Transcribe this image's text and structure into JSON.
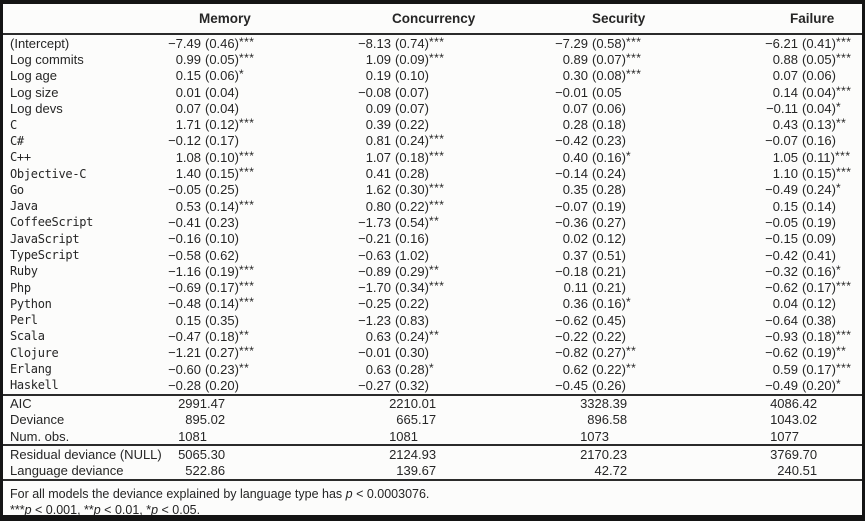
{
  "table": {
    "columns": [
      "Memory",
      "Concurrency",
      "Security",
      "Failure"
    ],
    "coef_rows": [
      {
        "label": "(Intercept)",
        "mono": false,
        "cells": [
          {
            "coef": "−7.49",
            "se": "(0.46)",
            "stars": "***"
          },
          {
            "coef": "−8.13",
            "se": "(0.74)",
            "stars": "***"
          },
          {
            "coef": "−7.29",
            "se": "(0.58)",
            "stars": "***"
          },
          {
            "coef": "−6.21",
            "se": "(0.41)",
            "stars": "***"
          }
        ]
      },
      {
        "label": "Log commits",
        "mono": false,
        "cells": [
          {
            "coef": "0.99",
            "se": "(0.05)",
            "stars": "***"
          },
          {
            "coef": "1.09",
            "se": "(0.09)",
            "stars": "***"
          },
          {
            "coef": "0.89",
            "se": "(0.07)",
            "stars": "***"
          },
          {
            "coef": "0.88",
            "se": "(0.05)",
            "stars": "***"
          }
        ]
      },
      {
        "label": "Log age",
        "mono": false,
        "cells": [
          {
            "coef": "0.15",
            "se": "(0.06)",
            "stars": "*"
          },
          {
            "coef": "0.19",
            "se": "(0.10)",
            "stars": ""
          },
          {
            "coef": "0.30",
            "se": "(0.08)",
            "stars": "***"
          },
          {
            "coef": "0.07",
            "se": "(0.06)",
            "stars": ""
          }
        ]
      },
      {
        "label": "Log size",
        "mono": false,
        "cells": [
          {
            "coef": "0.01",
            "se": "(0.04)",
            "stars": ""
          },
          {
            "coef": "−0.08",
            "se": "(0.07)",
            "stars": ""
          },
          {
            "coef": "−0.01",
            "se": "(0.05",
            "stars": ""
          },
          {
            "coef": "0.14",
            "se": "(0.04)",
            "stars": "***"
          }
        ]
      },
      {
        "label": "Log devs",
        "mono": false,
        "cells": [
          {
            "coef": "0.07",
            "se": "(0.04)",
            "stars": ""
          },
          {
            "coef": "0.09",
            "se": "(0.07)",
            "stars": ""
          },
          {
            "coef": "0.07",
            "se": "(0.06)",
            "stars": ""
          },
          {
            "coef": "−0.11",
            "se": "(0.04)",
            "stars": "*"
          }
        ]
      },
      {
        "label": "C",
        "mono": true,
        "cells": [
          {
            "coef": "1.71",
            "se": "(0.12)",
            "stars": "***"
          },
          {
            "coef": "0.39",
            "se": "(0.22)",
            "stars": ""
          },
          {
            "coef": "0.28",
            "se": "(0.18)",
            "stars": ""
          },
          {
            "coef": "0.43",
            "se": "(0.13)",
            "stars": "**"
          }
        ]
      },
      {
        "label": "C#",
        "mono": true,
        "cells": [
          {
            "coef": "−0.12",
            "se": "(0.17)",
            "stars": ""
          },
          {
            "coef": "0.81",
            "se": "(0.24)",
            "stars": "***"
          },
          {
            "coef": "−0.42",
            "se": "(0.23)",
            "stars": ""
          },
          {
            "coef": "−0.07",
            "se": "(0.16)",
            "stars": ""
          }
        ]
      },
      {
        "label": "C++",
        "mono": true,
        "cells": [
          {
            "coef": "1.08",
            "se": "(0.10)",
            "stars": "***"
          },
          {
            "coef": "1.07",
            "se": "(0.18)",
            "stars": "***"
          },
          {
            "coef": "0.40",
            "se": "(0.16)",
            "stars": "*"
          },
          {
            "coef": "1.05",
            "se": "(0.11)",
            "stars": "***"
          }
        ]
      },
      {
        "label": "Objective-C",
        "mono": true,
        "cells": [
          {
            "coef": "1.40",
            "se": "(0.15)",
            "stars": "***"
          },
          {
            "coef": "0.41",
            "se": "(0.28)",
            "stars": ""
          },
          {
            "coef": "−0.14",
            "se": "(0.24)",
            "stars": ""
          },
          {
            "coef": "1.10",
            "se": "(0.15)",
            "stars": "***"
          }
        ]
      },
      {
        "label": "Go",
        "mono": true,
        "cells": [
          {
            "coef": "−0.05",
            "se": "(0.25)",
            "stars": ""
          },
          {
            "coef": "1.62",
            "se": "(0.30)",
            "stars": "***"
          },
          {
            "coef": "0.35",
            "se": "(0.28)",
            "stars": ""
          },
          {
            "coef": "−0.49",
            "se": "(0.24)",
            "stars": "*"
          }
        ]
      },
      {
        "label": "Java",
        "mono": true,
        "cells": [
          {
            "coef": "0.53",
            "se": "(0.14)",
            "stars": "***"
          },
          {
            "coef": "0.80",
            "se": "(0.22)",
            "stars": "***"
          },
          {
            "coef": "−0.07",
            "se": "(0.19)",
            "stars": ""
          },
          {
            "coef": "0.15",
            "se": "(0.14)",
            "stars": ""
          }
        ]
      },
      {
        "label": "CoffeeScript",
        "mono": true,
        "cells": [
          {
            "coef": "−0.41",
            "se": "(0.23)",
            "stars": ""
          },
          {
            "coef": "−1.73",
            "se": "(0.54)",
            "stars": "**"
          },
          {
            "coef": "−0.36",
            "se": "(0.27)",
            "stars": ""
          },
          {
            "coef": "−0.05",
            "se": "(0.19)",
            "stars": ""
          }
        ]
      },
      {
        "label": "JavaScript",
        "mono": true,
        "cells": [
          {
            "coef": "−0.16",
            "se": "(0.10)",
            "stars": ""
          },
          {
            "coef": "−0.21",
            "se": "(0.16)",
            "stars": ""
          },
          {
            "coef": "0.02",
            "se": "(0.12)",
            "stars": ""
          },
          {
            "coef": "−0.15",
            "se": "(0.09)",
            "stars": ""
          }
        ]
      },
      {
        "label": "TypeScript",
        "mono": true,
        "cells": [
          {
            "coef": "−0.58",
            "se": "(0.62)",
            "stars": ""
          },
          {
            "coef": "−0.63",
            "se": "(1.02)",
            "stars": ""
          },
          {
            "coef": "0.37",
            "se": "(0.51)",
            "stars": ""
          },
          {
            "coef": "−0.42",
            "se": "(0.41)",
            "stars": ""
          }
        ]
      },
      {
        "label": "Ruby",
        "mono": true,
        "cells": [
          {
            "coef": "−1.16",
            "se": "(0.19)",
            "stars": "***"
          },
          {
            "coef": "−0.89",
            "se": "(0.29)",
            "stars": "**"
          },
          {
            "coef": "−0.18",
            "se": "(0.21)",
            "stars": ""
          },
          {
            "coef": "−0.32",
            "se": "(0.16)",
            "stars": "*"
          }
        ]
      },
      {
        "label": "Php",
        "mono": true,
        "cells": [
          {
            "coef": "−0.69",
            "se": "(0.17)",
            "stars": "***"
          },
          {
            "coef": "−1.70",
            "se": "(0.34)",
            "stars": "***"
          },
          {
            "coef": "0.11",
            "se": "(0.21)",
            "stars": ""
          },
          {
            "coef": "−0.62",
            "se": "(0.17)",
            "stars": "***"
          }
        ]
      },
      {
        "label": "Python",
        "mono": true,
        "cells": [
          {
            "coef": "−0.48",
            "se": "(0.14)",
            "stars": "***"
          },
          {
            "coef": "−0.25",
            "se": "(0.22)",
            "stars": ""
          },
          {
            "coef": "0.36",
            "se": "(0.16)",
            "stars": "*"
          },
          {
            "coef": "0.04",
            "se": "(0.12)",
            "stars": ""
          }
        ]
      },
      {
        "label": "Perl",
        "mono": true,
        "cells": [
          {
            "coef": "0.15",
            "se": "(0.35)",
            "stars": ""
          },
          {
            "coef": "−1.23",
            "se": "(0.83)",
            "stars": ""
          },
          {
            "coef": "−0.62",
            "se": "(0.45)",
            "stars": ""
          },
          {
            "coef": "−0.64",
            "se": "(0.38)",
            "stars": ""
          }
        ]
      },
      {
        "label": "Scala",
        "mono": true,
        "cells": [
          {
            "coef": "−0.47",
            "se": "(0.18)",
            "stars": "**"
          },
          {
            "coef": "0.63",
            "se": "(0.24)",
            "stars": "**"
          },
          {
            "coef": "−0.22",
            "se": "(0.22)",
            "stars": ""
          },
          {
            "coef": "−0.93",
            "se": "(0.18)",
            "stars": "***"
          }
        ]
      },
      {
        "label": "Clojure",
        "mono": true,
        "cells": [
          {
            "coef": "−1.21",
            "se": "(0.27)",
            "stars": "***"
          },
          {
            "coef": "−0.01",
            "se": "(0.30)",
            "stars": ""
          },
          {
            "coef": "−0.82",
            "se": "(0.27)",
            "stars": "**"
          },
          {
            "coef": "−0.62",
            "se": "(0.19)",
            "stars": "**"
          }
        ]
      },
      {
        "label": "Erlang",
        "mono": true,
        "cells": [
          {
            "coef": "−0.60",
            "se": "(0.23)",
            "stars": "**"
          },
          {
            "coef": "0.63",
            "se": "(0.28)",
            "stars": "*"
          },
          {
            "coef": "0.62",
            "se": "(0.22)",
            "stars": "**"
          },
          {
            "coef": "0.59",
            "se": "(0.17)",
            "stars": "***"
          }
        ]
      },
      {
        "label": "Haskell",
        "mono": true,
        "cells": [
          {
            "coef": "−0.28",
            "se": "(0.20)",
            "stars": ""
          },
          {
            "coef": "−0.27",
            "se": "(0.32)",
            "stars": ""
          },
          {
            "coef": "−0.45",
            "se": "(0.26)",
            "stars": ""
          },
          {
            "coef": "−0.49",
            "se": "(0.20)",
            "stars": "*"
          }
        ]
      }
    ],
    "summary_rows": [
      {
        "label": "AIC",
        "cells": [
          {
            "int": "2991",
            "frac": ".47"
          },
          {
            "int": "2210",
            "frac": ".01"
          },
          {
            "int": "3328",
            "frac": ".39"
          },
          {
            "int": "4086",
            "frac": ".42"
          }
        ]
      },
      {
        "label": "Deviance",
        "cells": [
          {
            "int": "895",
            "frac": ".02"
          },
          {
            "int": "665",
            "frac": ".17"
          },
          {
            "int": "896",
            "frac": ".58"
          },
          {
            "int": "1043",
            "frac": ".02"
          }
        ]
      },
      {
        "label": "Num. obs.",
        "cells": [
          {
            "int": "1081",
            "frac": ""
          },
          {
            "int": "1081",
            "frac": ""
          },
          {
            "int": "1073",
            "frac": ""
          },
          {
            "int": "1077",
            "frac": ""
          }
        ]
      }
    ],
    "deviance_rows": [
      {
        "label": "Residual deviance (NULL)",
        "cells": [
          {
            "int": "5065",
            "frac": ".30"
          },
          {
            "int": "2124",
            "frac": ".93"
          },
          {
            "int": "2170",
            "frac": ".23"
          },
          {
            "int": "3769",
            "frac": ".70"
          }
        ]
      },
      {
        "label": "Language deviance",
        "cells": [
          {
            "int": "522",
            "frac": ".86"
          },
          {
            "int": "139",
            "frac": ".67"
          },
          {
            "int": "42",
            "frac": ".72"
          },
          {
            "int": "240",
            "frac": ".51"
          }
        ]
      }
    ],
    "footnotes": [
      {
        "segments": [
          {
            "t": "For all models the deviance explained by language type has ",
            "i": false
          },
          {
            "t": "p",
            "i": true
          },
          {
            "t": " < 0.0003076.",
            "i": false
          }
        ]
      },
      {
        "segments": [
          {
            "t": "***",
            "i": false
          },
          {
            "t": "p",
            "i": true
          },
          {
            "t": " < 0.001, **",
            "i": false
          },
          {
            "t": "p",
            "i": true
          },
          {
            "t": " < 0.01, *",
            "i": false
          },
          {
            "t": "p",
            "i": true
          },
          {
            "t": " < 0.05.",
            "i": false
          }
        ]
      }
    ]
  }
}
